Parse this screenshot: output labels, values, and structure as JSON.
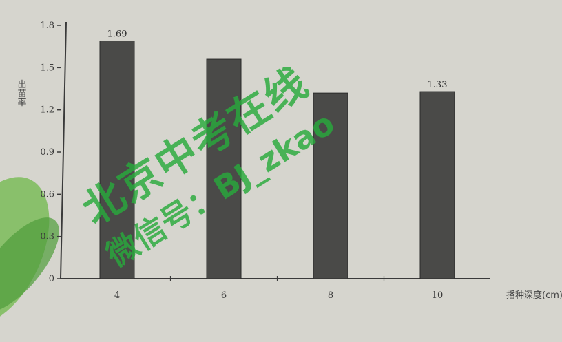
{
  "chart_data": {
    "type": "bar",
    "categories": [
      "4",
      "6",
      "8",
      "10"
    ],
    "values": [
      1.69,
      1.56,
      1.32,
      1.33
    ],
    "data_labels": [
      "1.69",
      "",
      "",
      "1.33"
    ],
    "xlabel": "播种深度(cm)",
    "ylabel": "出苗率",
    "ylim": [
      0,
      1.8
    ],
    "y_ticks": [
      "0",
      "0.3",
      "0.6",
      "0.9",
      "1.2",
      "1.5",
      "1.8"
    ],
    "grid": false,
    "bar_color": "#4a4a48"
  },
  "watermark": {
    "line1": "北京中考在线",
    "line2": "微信号：BJ_zkao"
  }
}
